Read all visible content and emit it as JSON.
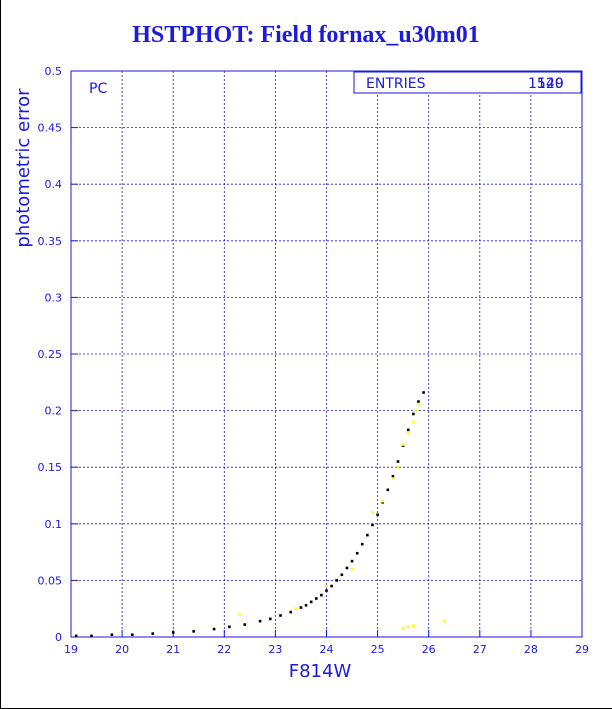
{
  "chart_data": {
    "type": "scatter",
    "title": "HSTPHOT: Field fornax_u30m01",
    "xlabel": "F814W",
    "ylabel": "photometric error",
    "xlim": [
      19,
      29
    ],
    "ylim": [
      0,
      0.5
    ],
    "x_ticks": [
      "19",
      "20",
      "21",
      "22",
      "23",
      "24",
      "25",
      "26",
      "27",
      "28",
      "29"
    ],
    "y_ticks": [
      "0",
      "0.05",
      "0.1",
      "0.15",
      "0.2",
      "0.25",
      "0.3",
      "0.35",
      "0.4",
      "0.45",
      "0.5"
    ],
    "grid": true,
    "panel_label": "PC",
    "stats_box": {
      "label": "ENTRIES",
      "value": "1520",
      "value_overlay": "149"
    },
    "series": [
      {
        "color": "#000000",
        "x": [
          19.1,
          19.4,
          19.8,
          20.2,
          20.6,
          21.0,
          21.4,
          21.8,
          22.1,
          22.4,
          22.7,
          22.9,
          23.1,
          23.3,
          23.5,
          23.6,
          23.7,
          23.8,
          23.9,
          24.0,
          24.1,
          24.2,
          24.3,
          24.4,
          24.5,
          24.6,
          24.7,
          24.8,
          24.9,
          25.0,
          25.1,
          25.2,
          25.3,
          25.4,
          25.5,
          25.6,
          25.7,
          25.8,
          25.9
        ],
        "y": [
          0.001,
          0.001,
          0.002,
          0.002,
          0.003,
          0.004,
          0.005,
          0.007,
          0.009,
          0.011,
          0.014,
          0.016,
          0.019,
          0.022,
          0.026,
          0.028,
          0.031,
          0.034,
          0.037,
          0.041,
          0.045,
          0.05,
          0.055,
          0.061,
          0.067,
          0.074,
          0.082,
          0.09,
          0.099,
          0.108,
          0.119,
          0.13,
          0.142,
          0.155,
          0.169,
          0.183,
          0.197,
          0.208,
          0.216
        ]
      },
      {
        "color": "#ffff00",
        "x": [
          22.3,
          23.4,
          24.0,
          24.5,
          24.9,
          25.1,
          25.3,
          25.4,
          25.5,
          25.6,
          25.7,
          25.75,
          25.8,
          25.5,
          25.6,
          25.7,
          26.3
        ],
        "y": [
          0.02,
          0.025,
          0.045,
          0.06,
          0.11,
          0.12,
          0.14,
          0.15,
          0.17,
          0.18,
          0.19,
          0.2,
          0.205,
          0.008,
          0.009,
          0.01,
          0.014
        ]
      }
    ]
  }
}
